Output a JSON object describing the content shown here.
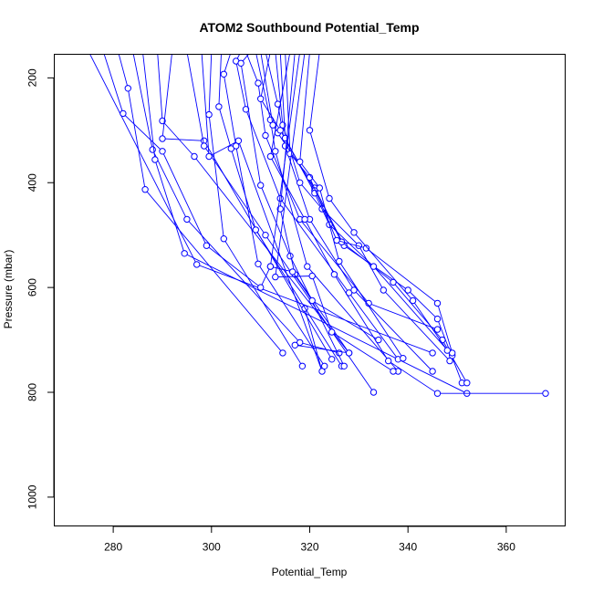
{
  "chart_data": {
    "type": "line",
    "title": "ATOM2 Southbound Potential_Temp",
    "xlabel": "Potential_Temp",
    "ylabel": "Pressure (mbar)",
    "xlim": [
      268,
      372
    ],
    "ylim": [
      1055,
      155
    ],
    "y_reversed": true,
    "x_ticks": [
      "280",
      "300",
      "320",
      "340",
      "360"
    ],
    "y_ticks": [
      "200",
      "400",
      "600",
      "800",
      "1000"
    ],
    "series_color": "#0000ff",
    "series": [
      {
        "points": [
          [
            275,
            150
          ],
          [
            297,
            556
          ],
          [
            345,
            725
          ]
        ]
      },
      {
        "points": [
          [
            278,
            150
          ],
          [
            282,
            268
          ],
          [
            290,
            340
          ],
          [
            299,
            520
          ],
          [
            310,
            600
          ],
          [
            312,
            560
          ]
        ]
      },
      {
        "points": [
          [
            281,
            150
          ],
          [
            283,
            220
          ],
          [
            286.5,
            413
          ],
          [
            314.5,
            725
          ]
        ]
      },
      {
        "points": [
          [
            284,
            150
          ],
          [
            288,
            337
          ],
          [
            295,
            470
          ],
          [
            318,
            705
          ],
          [
            326,
            725
          ]
        ]
      },
      {
        "points": [
          [
            286,
            150
          ],
          [
            288.5,
            356
          ],
          [
            294.5,
            535
          ],
          [
            352,
            802
          ]
        ]
      },
      {
        "points": [
          [
            289,
            150
          ],
          [
            290,
            282
          ],
          [
            296.5,
            350
          ],
          [
            328,
            725
          ]
        ]
      },
      {
        "points": [
          [
            292,
            150
          ],
          [
            290,
            316
          ],
          [
            298.5,
            320
          ],
          [
            324.5,
            737
          ]
        ]
      },
      {
        "points": [
          [
            295,
            150
          ],
          [
            298.5,
            330
          ],
          [
            311,
            500
          ],
          [
            333,
            800
          ]
        ]
      },
      {
        "points": [
          [
            298,
            150
          ],
          [
            299.5,
            350
          ],
          [
            305.5,
            320
          ],
          [
            322.5,
            760
          ],
          [
            319,
            640
          ]
        ]
      },
      {
        "points": [
          [
            300,
            150
          ],
          [
            299.5,
            270
          ],
          [
            302.5,
            507
          ],
          [
            318.5,
            750
          ]
        ]
      },
      {
        "points": [
          [
            302,
            150
          ],
          [
            301.5,
            255
          ],
          [
            304,
            335
          ],
          [
            309,
            490
          ],
          [
            326.5,
            750
          ]
        ]
      },
      {
        "points": [
          [
            304,
            150
          ],
          [
            302.5,
            193
          ],
          [
            305,
            330
          ],
          [
            309.5,
            555
          ],
          [
            323,
            750
          ]
        ]
      },
      {
        "points": [
          [
            306,
            150
          ],
          [
            305,
            168
          ],
          [
            307,
            260
          ],
          [
            314,
            430
          ],
          [
            328,
            610
          ],
          [
            338,
            737
          ]
        ]
      },
      {
        "points": [
          [
            307,
            150
          ],
          [
            309.5,
            210
          ],
          [
            311,
            310
          ],
          [
            318,
            470
          ],
          [
            332,
            630
          ],
          [
            346,
            680
          ]
        ]
      },
      {
        "points": [
          [
            308,
            150
          ],
          [
            306,
            172
          ],
          [
            310,
            405
          ],
          [
            316,
            540
          ],
          [
            327,
            750
          ]
        ]
      },
      {
        "points": [
          [
            309,
            150
          ],
          [
            312,
            280
          ],
          [
            313,
            340
          ],
          [
            319.5,
            560
          ],
          [
            338,
            760
          ]
        ]
      },
      {
        "points": [
          [
            310,
            150
          ],
          [
            312.5,
            290
          ],
          [
            313.5,
            305
          ],
          [
            321,
            410
          ],
          [
            327,
            520
          ],
          [
            340,
            605
          ],
          [
            346,
            660
          ],
          [
            351,
            782
          ]
        ]
      },
      {
        "points": [
          [
            311,
            150
          ],
          [
            313.5,
            250
          ],
          [
            315,
            330
          ],
          [
            320,
            470
          ],
          [
            329,
            605
          ],
          [
            345,
            760
          ]
        ]
      },
      {
        "points": [
          [
            312,
            150
          ],
          [
            310,
            240
          ],
          [
            314,
            300
          ],
          [
            321,
            415
          ],
          [
            326.5,
            513
          ],
          [
            337,
            590
          ],
          [
            347,
            700
          ],
          [
            352,
            782
          ]
        ]
      },
      {
        "points": [
          [
            313,
            150
          ],
          [
            314.5,
            290
          ],
          [
            318,
            400
          ],
          [
            322.5,
            450
          ],
          [
            330,
            520
          ],
          [
            335,
            605
          ],
          [
            348.5,
            740
          ]
        ]
      },
      {
        "points": [
          [
            314,
            150
          ],
          [
            315,
            315
          ],
          [
            321,
            420
          ],
          [
            324,
            480
          ],
          [
            333,
            560
          ],
          [
            349,
            730
          ]
        ]
      },
      {
        "points": [
          [
            315,
            150
          ],
          [
            316,
            345
          ],
          [
            320,
            390
          ],
          [
            325.5,
            510
          ],
          [
            331.5,
            525
          ],
          [
            346,
            630
          ],
          [
            349,
            725
          ]
        ]
      },
      {
        "points": [
          [
            316,
            150
          ],
          [
            312,
            350
          ],
          [
            319,
            470
          ],
          [
            325,
            575
          ],
          [
            336,
            740
          ],
          [
            346,
            802
          ],
          [
            368,
            802
          ]
        ]
      },
      {
        "points": [
          [
            317,
            150
          ],
          [
            314,
            450
          ],
          [
            317,
            575
          ],
          [
            328,
            725
          ],
          [
            317,
            710
          ]
        ]
      },
      {
        "points": [
          [
            318,
            150
          ],
          [
            312,
            560
          ],
          [
            316.5,
            570
          ],
          [
            320.5,
            625
          ],
          [
            334,
            700
          ]
        ]
      },
      {
        "points": [
          [
            319,
            150
          ],
          [
            313,
            580
          ],
          [
            320.5,
            578
          ],
          [
            324.5,
            685
          ],
          [
            337,
            760
          ]
        ]
      },
      {
        "points": [
          [
            320,
            150
          ],
          [
            318,
            360
          ],
          [
            322,
            410
          ],
          [
            326,
            550
          ],
          [
            339,
            735
          ]
        ]
      },
      {
        "points": [
          [
            322,
            150
          ],
          [
            320,
            300
          ],
          [
            324,
            430
          ],
          [
            329,
            495
          ],
          [
            341,
            625
          ],
          [
            348,
            720
          ]
        ]
      }
    ]
  }
}
